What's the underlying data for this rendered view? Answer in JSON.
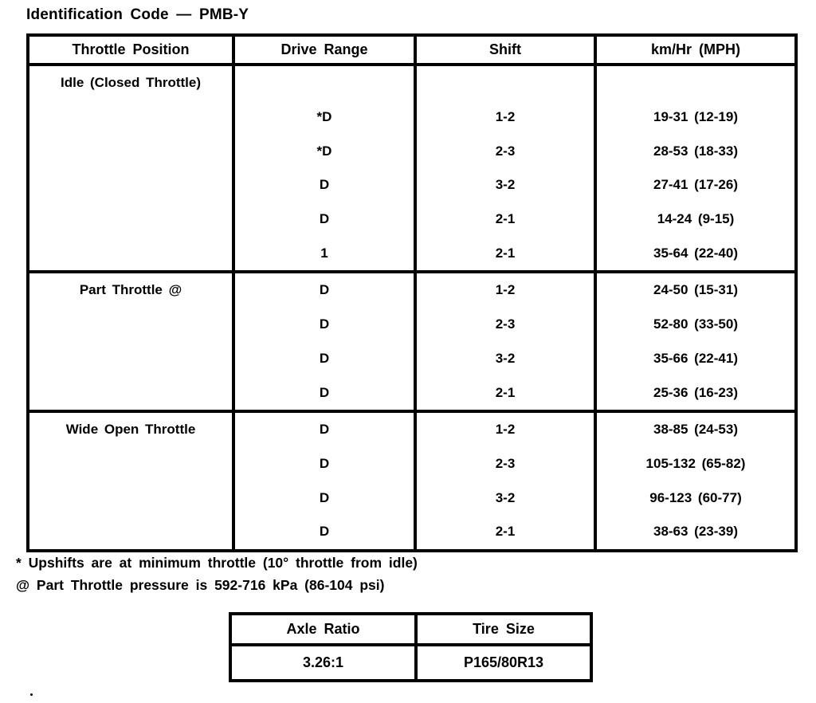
{
  "title": "Identification Code — PMB-Y",
  "table": {
    "headers": [
      "Throttle Position",
      "Drive Range",
      "Shift",
      "km/Hr (MPH)"
    ],
    "sections": [
      {
        "label": "Idle (Closed Throttle)",
        "rows": [
          {
            "drive_range": "*D",
            "shift": "1-2",
            "speed": "19-31 (12-19)"
          },
          {
            "drive_range": "*D",
            "shift": "2-3",
            "speed": "28-53 (18-33)"
          },
          {
            "drive_range": "D",
            "shift": "3-2",
            "speed": "27-41 (17-26)"
          },
          {
            "drive_range": "D",
            "shift": "2-1",
            "speed": "14-24 (9-15)"
          },
          {
            "drive_range": "1",
            "shift": "2-1",
            "speed": "35-64 (22-40)"
          }
        ]
      },
      {
        "label": "Part Throttle @",
        "rows": [
          {
            "drive_range": "D",
            "shift": "1-2",
            "speed": "24-50 (15-31)"
          },
          {
            "drive_range": "D",
            "shift": "2-3",
            "speed": "52-80 (33-50)"
          },
          {
            "drive_range": "D",
            "shift": "3-2",
            "speed": "35-66 (22-41)"
          },
          {
            "drive_range": "D",
            "shift": "2-1",
            "speed": "25-36 (16-23)"
          }
        ]
      },
      {
        "label": "Wide Open Throttle",
        "rows": [
          {
            "drive_range": "D",
            "shift": "1-2",
            "speed": "38-85 (24-53)"
          },
          {
            "drive_range": "D",
            "shift": "2-3",
            "speed": "105-132 (65-82)"
          },
          {
            "drive_range": "D",
            "shift": "3-2",
            "speed": "96-123 (60-77)"
          },
          {
            "drive_range": "D",
            "shift": "2-1",
            "speed": "38-63 (23-39)"
          }
        ]
      }
    ]
  },
  "footnotes": [
    "* Upshifts are at minimum throttle (10° throttle from idle)",
    "@ Part Throttle pressure is 592-716 kPa (86-104 psi)"
  ],
  "spec_table": {
    "headers": [
      "Axle Ratio",
      "Tire Size"
    ],
    "values": [
      "3.26:1",
      "P165/80R13"
    ]
  }
}
